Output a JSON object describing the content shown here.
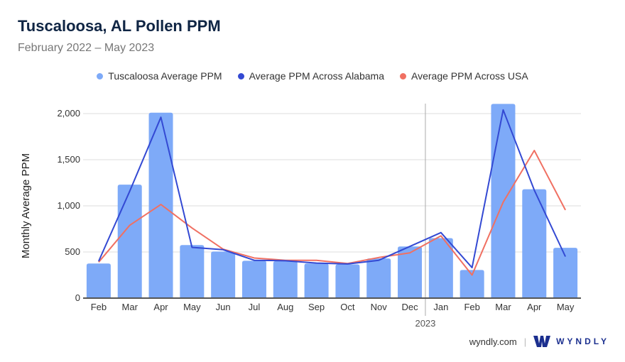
{
  "title": "Tuscaloosa, AL Pollen PPM",
  "subtitle": "February 2022 – May 2023",
  "footer": {
    "site": "wyndly.com",
    "brand": "WYNDLY"
  },
  "colors": {
    "bars": "#7eaaf8",
    "alabama": "#3349d3",
    "usa": "#f07062",
    "title": "#0f2544"
  },
  "chart_data": {
    "type": "bar",
    "title": "Tuscaloosa, AL Pollen PPM",
    "ylabel": "Monthly Average PPM",
    "xlabel": "",
    "ylim": [
      0,
      2000
    ],
    "yticks": [
      0,
      500,
      1000,
      1500,
      2000
    ],
    "ytick_labels": [
      "0",
      "500",
      "1,000",
      "1,500",
      "2,000"
    ],
    "categories": [
      "Feb",
      "Mar",
      "Apr",
      "May",
      "Jun",
      "Jul",
      "Aug",
      "Sep",
      "Oct",
      "Nov",
      "Dec",
      "Jan",
      "Feb",
      "Mar",
      "Apr",
      "May"
    ],
    "year_divider": {
      "before_index": 11,
      "label": "2023"
    },
    "legend_position": "top-center",
    "series": [
      {
        "name": "Tuscaloosa Average PPM",
        "kind": "bar",
        "values": [
          375,
          1230,
          2010,
          575,
          505,
          405,
          400,
          375,
          365,
          430,
          560,
          650,
          305,
          2105,
          1180,
          545
        ]
      },
      {
        "name": "Average PPM Across Alabama",
        "kind": "line",
        "values": [
          400,
          1160,
          1960,
          550,
          525,
          410,
          405,
          380,
          370,
          410,
          560,
          710,
          330,
          2040,
          1170,
          450
        ]
      },
      {
        "name": "Average PPM Across USA",
        "kind": "line",
        "values": [
          390,
          790,
          1015,
          760,
          530,
          435,
          410,
          410,
          375,
          440,
          490,
          675,
          250,
          1040,
          1600,
          955
        ]
      }
    ]
  }
}
